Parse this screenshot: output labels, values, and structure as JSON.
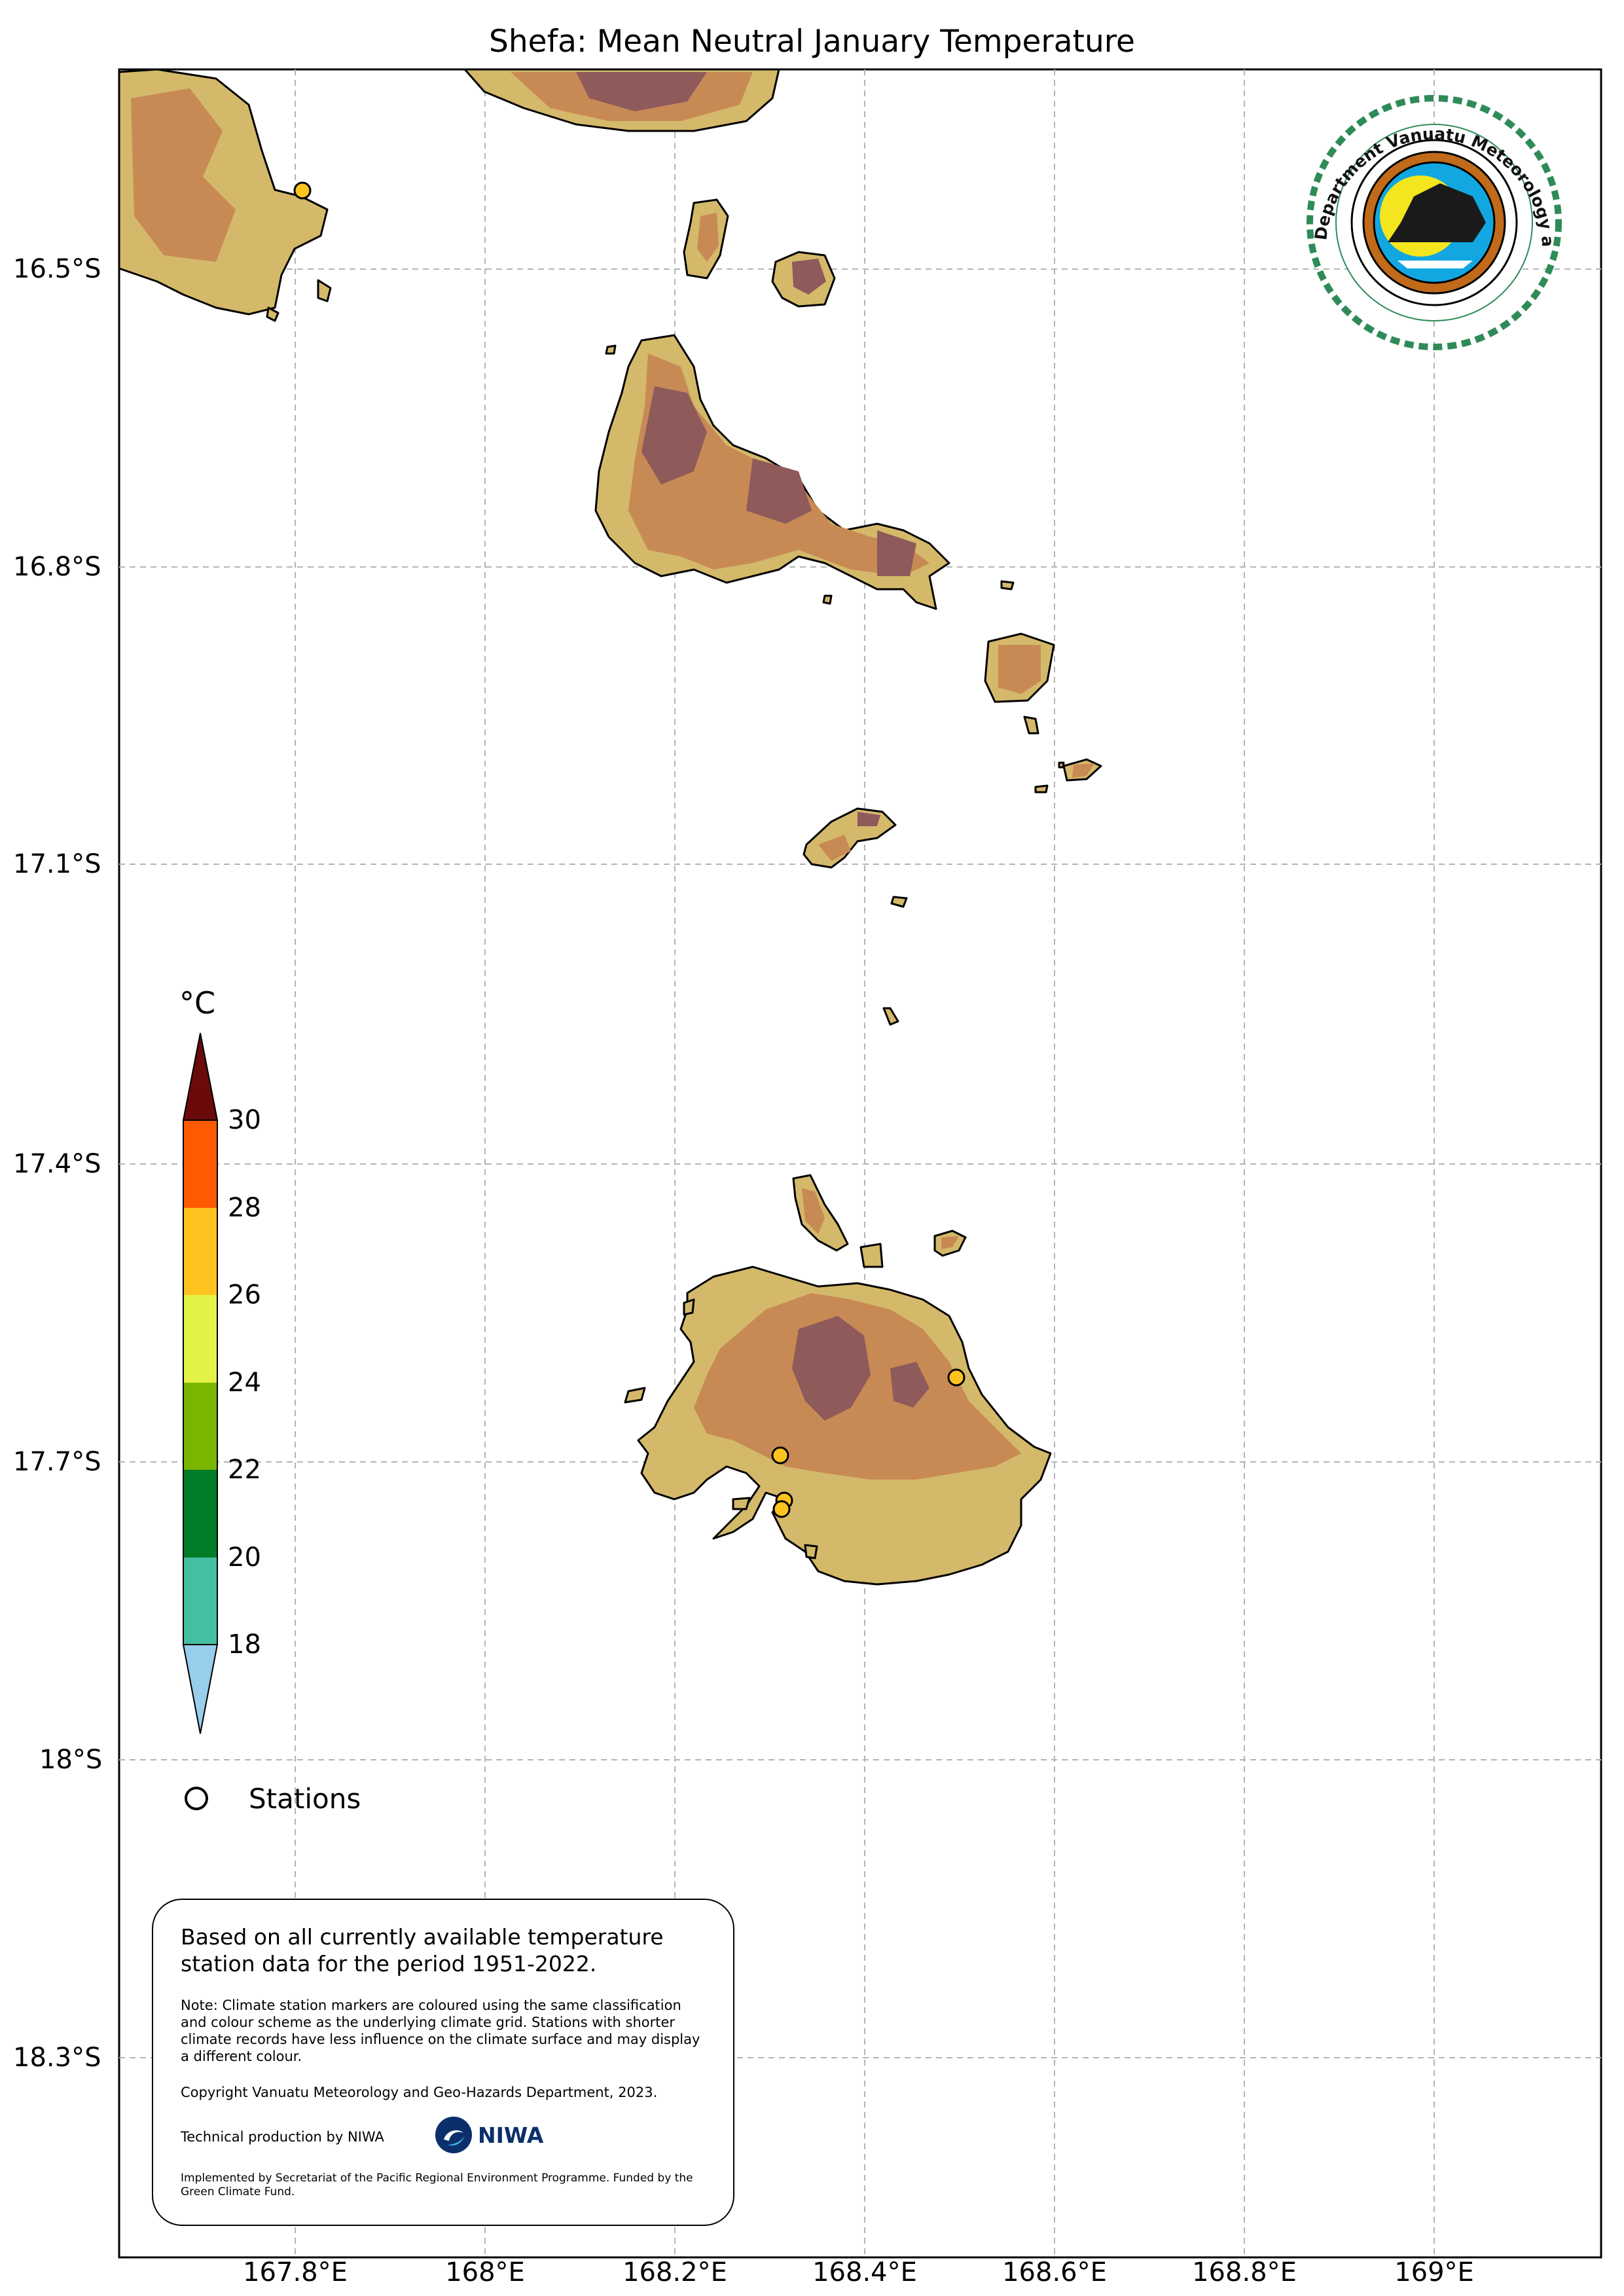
{
  "title": "Shefa: Mean Neutral January Temperature",
  "axes": {
    "lat_ticks": [
      "16.5°S",
      "16.8°S",
      "17.1°S",
      "17.4°S",
      "17.7°S",
      "18°S",
      "18.3°S"
    ],
    "lon_ticks": [
      "167.8°E",
      "168°E",
      "168.2°E",
      "168.4°E",
      "168.6°E",
      "168.8°E",
      "169°E"
    ]
  },
  "colorbar": {
    "unit": "°C",
    "ticks": [
      "30",
      "28",
      "26",
      "24",
      "22",
      "20",
      "18"
    ],
    "colors": [
      "#6b0a0a",
      "#ff5a00",
      "#ffc31f",
      "#e2f247",
      "#7ab500",
      "#007d26",
      "#45bfa1",
      "#98cdeb"
    ]
  },
  "legend": {
    "stations_label": "Stations"
  },
  "note_box": {
    "main": "Based on all currently available temperature station data for the period 1951-2022.",
    "note": "Note: Climate station markers are coloured using the same classification and colour scheme as the underlying climate grid. Stations with shorter climate records have less influence on the climate surface and may display a different colour.",
    "copyright": "Copyright Vanuatu Meteorology and Geo-Hazards Department, 2023.",
    "technical": "Technical production by NIWA",
    "niwa_logo_text": "NIWA",
    "funding": "Implemented by Secretariat of the Pacific Regional Environment Programme. Funded by the Green Climate Fund."
  },
  "logo": {
    "text": "Department Vanuatu Meteorology and Geo-Hazards"
  },
  "map": {
    "land_colors": [
      "#d4b96a",
      "#c88a55",
      "#8e5a5a"
    ],
    "station_color": "#ffc31f"
  }
}
